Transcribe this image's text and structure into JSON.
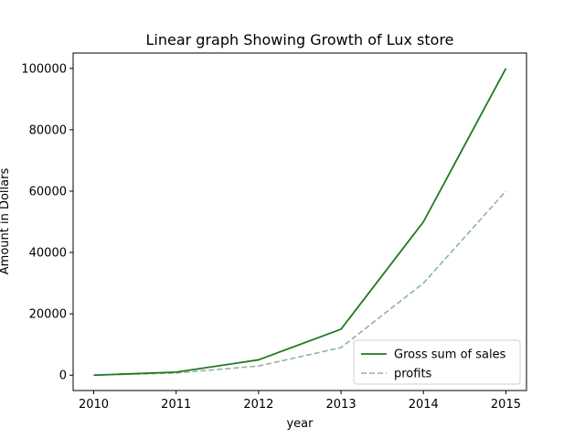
{
  "chart_data": {
    "type": "line",
    "title": "Linear graph Showing Growth of Lux store",
    "xlabel": "year",
    "ylabel": "Amount in Dollars",
    "x": [
      "2010",
      "2011",
      "2012",
      "2013",
      "2014",
      "2015"
    ],
    "xlim": [
      2009.75,
      2015.25
    ],
    "ylim": [
      -5000,
      105000
    ],
    "yticks": [
      0,
      20000,
      40000,
      60000,
      80000,
      100000
    ],
    "ytick_labels": [
      "0",
      "20000",
      "40000",
      "60000",
      "80000",
      "100000"
    ],
    "grid": false,
    "legend_position": "lower-right",
    "series": [
      {
        "name": "Gross sum of sales",
        "values": [
          0,
          1000,
          5000,
          15000,
          50000,
          100000
        ],
        "color": "#1f7a1f",
        "style": "solid"
      },
      {
        "name": "profits",
        "values": [
          0,
          700,
          3000,
          9000,
          30000,
          60000
        ],
        "color": "#8fb3a0",
        "style": "dashed"
      }
    ]
  }
}
